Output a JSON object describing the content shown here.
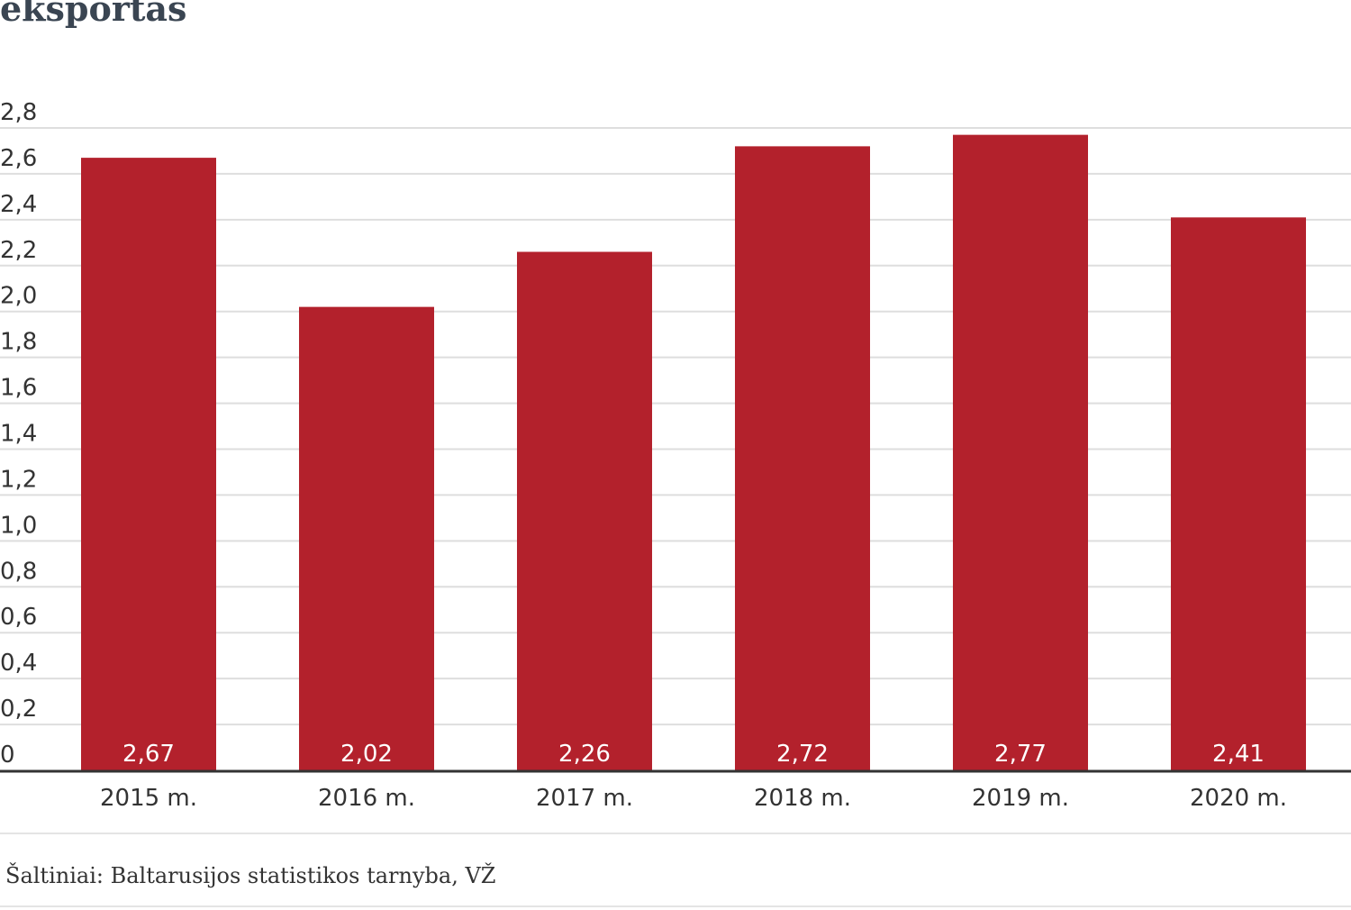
{
  "chart_data": {
    "type": "bar",
    "title": "eksportas",
    "categories": [
      "2015 m.",
      "2016 m.",
      "2017 m.",
      "2018 m.",
      "2019 m.",
      "2020 m."
    ],
    "values": [
      2.67,
      2.02,
      2.26,
      2.72,
      2.77,
      2.41
    ],
    "value_labels": [
      "2,67",
      "2,02",
      "2,26",
      "2,72",
      "2,77",
      "2,41"
    ],
    "y_ticks": [
      "0",
      "0,2",
      "0,4",
      "0,6",
      "0,8",
      "1,0",
      "1,2",
      "1,4",
      "1,6",
      "1,8",
      "2,0",
      "2,2",
      "2,4",
      "2,6",
      "2,8"
    ],
    "ylim": [
      0,
      2.8
    ],
    "grid": true,
    "bar_color": "#b3212c",
    "grid_color": "#dedede",
    "axis_color": "#333333"
  },
  "source": "Šaltiniai: Baltarusijos statistikos tarnyba, VŽ"
}
